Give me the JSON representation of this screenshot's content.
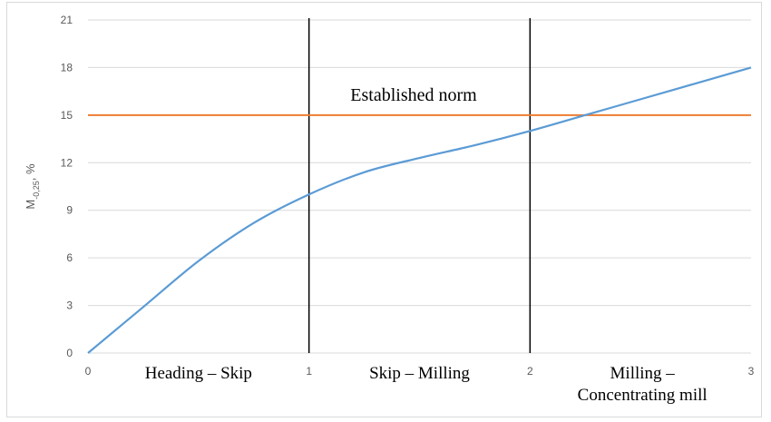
{
  "chart_data": {
    "type": "line",
    "ylabel_main": "M",
    "ylabel_sub": "-0,25",
    "ylabel_suffix": ", %",
    "xlim": [
      0,
      3
    ],
    "ylim": [
      0,
      21
    ],
    "x_ticks": [
      0,
      1,
      2,
      3
    ],
    "y_ticks": [
      0,
      3,
      6,
      9,
      12,
      15,
      18,
      21
    ],
    "grid": true,
    "series": [
      {
        "color": "#5b9bd5",
        "x": [
          0,
          0.25,
          0.5,
          0.75,
          1,
          1.25,
          1.5,
          1.75,
          2,
          2.25,
          2.5,
          2.75,
          3
        ],
        "y": [
          0,
          2.9,
          5.8,
          8.2,
          10,
          11.4,
          12.3,
          13.1,
          14,
          15,
          16,
          17,
          18
        ]
      }
    ],
    "norm_line": {
      "y": 15,
      "color": "#ed7d31",
      "label": "Established norm"
    },
    "stage_boundaries": [
      1,
      2
    ],
    "regions": [
      {
        "label": "Heading – Skip",
        "x_center": 0.5
      },
      {
        "label": "Skip – Milling",
        "x_center": 1.5
      },
      {
        "label_lines": [
          "Milling –",
          "Concentrating mill"
        ],
        "x_center": 2.5
      }
    ]
  }
}
